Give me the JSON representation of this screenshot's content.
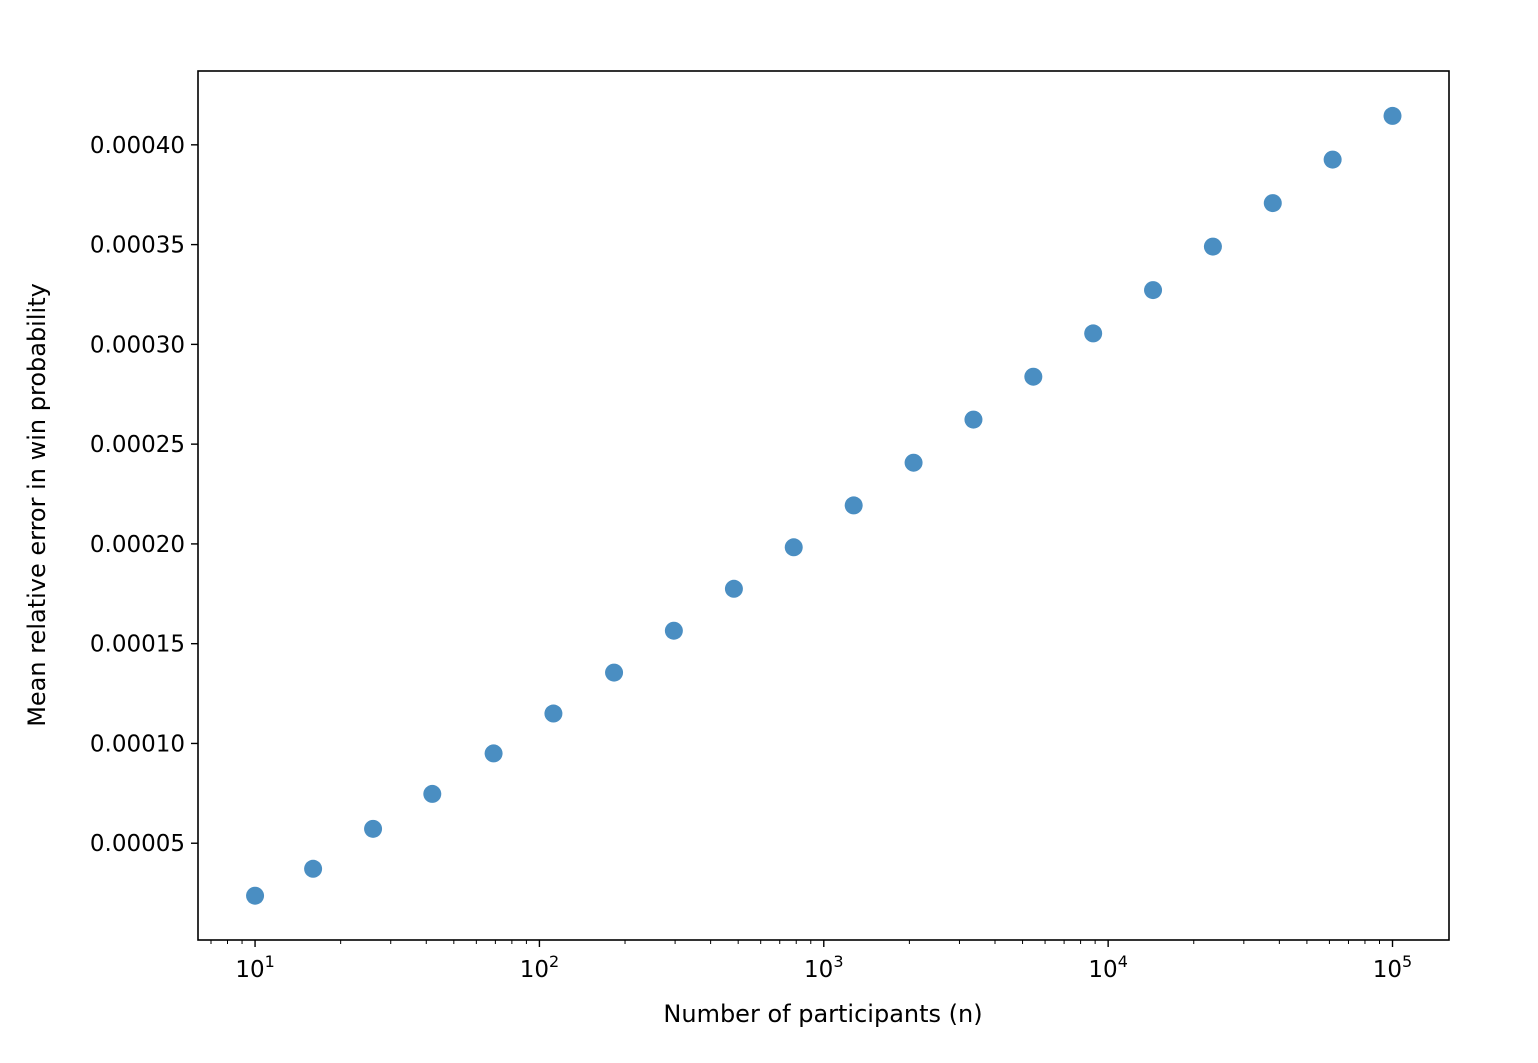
{
  "chart_data": {
    "type": "scatter",
    "xlabel": "Number of participants (n)",
    "ylabel": "Mean relative error in win probability",
    "xscale": "log",
    "xlim": [
      6.3,
      158000
    ],
    "ylim": [
      1.5e-06,
      0.000437
    ],
    "grid": false,
    "legend": "none",
    "marker_color": "#4a8ec2",
    "x_ticks": [
      {
        "base": "10",
        "exp": "1",
        "value": 10
      },
      {
        "base": "10",
        "exp": "2",
        "value": 100
      },
      {
        "base": "10",
        "exp": "3",
        "value": 1000
      },
      {
        "base": "10",
        "exp": "4",
        "value": 10000
      },
      {
        "base": "10",
        "exp": "5",
        "value": 100000
      }
    ],
    "y_ticks": [
      {
        "label": "0.00005",
        "value": 5e-05
      },
      {
        "label": "0.00010",
        "value": 0.0001
      },
      {
        "label": "0.00015",
        "value": 0.00015
      },
      {
        "label": "0.00020",
        "value": 0.0002
      },
      {
        "label": "0.00025",
        "value": 0.00025
      },
      {
        "label": "0.00030",
        "value": 0.0003
      },
      {
        "label": "0.00035",
        "value": 0.00035
      },
      {
        "label": "0.00040",
        "value": 0.0004
      }
    ],
    "x": [
      10,
      16,
      26,
      42,
      69,
      112,
      183,
      297,
      483,
      784,
      1274,
      2069,
      3360,
      5456,
      8859,
      14384,
      23357,
      37927,
      61584,
      100000
    ],
    "y": [
      2.37e-05,
      3.72e-05,
      5.72e-05,
      7.47e-05,
      9.5e-05,
      0.000115,
      0.0001355,
      0.0001565,
      0.0001775,
      0.0001983,
      0.0002193,
      0.0002407,
      0.0002623,
      0.0002838,
      0.0003055,
      0.0003272,
      0.000349,
      0.0003708,
      0.0003926,
      0.0004145
    ]
  }
}
